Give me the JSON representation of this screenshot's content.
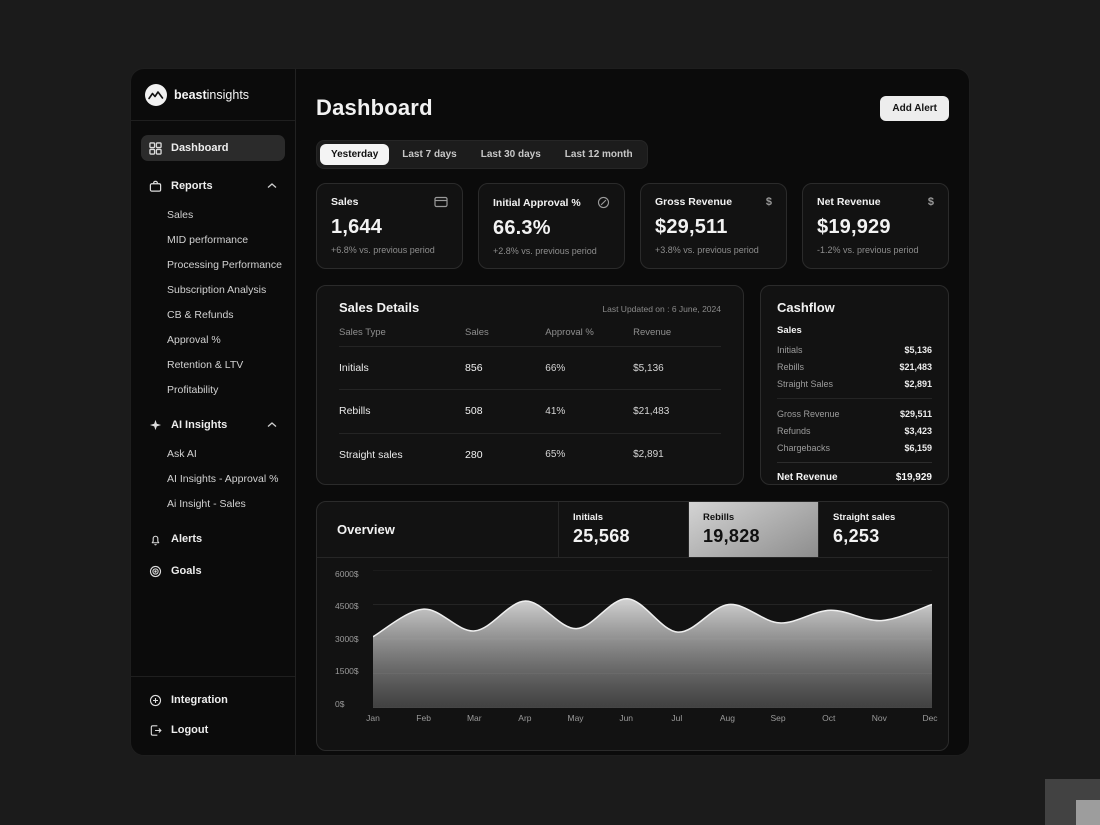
{
  "brand": {
    "bold": "beast",
    "light": "insights"
  },
  "sidebar": {
    "dashboard": "Dashboard",
    "reports": {
      "label": "Reports",
      "items": [
        "Sales",
        "MID performance",
        "Processing Performance",
        "Subscription Analysis",
        "CB & Refunds",
        "Approval %",
        "Retention & LTV",
        "Profitability"
      ]
    },
    "ai": {
      "label": "AI Insights",
      "items": [
        "Ask AI",
        "AI Insights - Approval %",
        "Ai Insight - Sales"
      ]
    },
    "alerts": "Alerts",
    "goals": "Goals",
    "integration": "Integration",
    "logout": "Logout"
  },
  "header": {
    "title": "Dashboard",
    "add_alert": "Add Alert"
  },
  "tabs": {
    "items": [
      "Yesterday",
      "Last 7 days",
      "Last 30 days",
      "Last 12 month"
    ],
    "selected": "Yesterday"
  },
  "kpis": [
    {
      "label": "Sales",
      "icon": "credit-card-icon",
      "value": "1,644",
      "delta": "+6.8% vs. previous period"
    },
    {
      "label": "Initial Approval %",
      "icon": "percent-circle-icon",
      "value": "66.3%",
      "delta": "+2.8% vs. previous period"
    },
    {
      "label": "Gross Revenue",
      "icon": "dollar-icon",
      "icon_glyph": "$",
      "value": "$29,511",
      "delta": "+3.8% vs. previous period"
    },
    {
      "label": "Net Revenue",
      "icon": "dollar-icon",
      "icon_glyph": "$",
      "value": "$19,929",
      "delta": "-1.2% vs. previous period"
    }
  ],
  "sales_details": {
    "title": "Sales Details",
    "last_updated": "Last Updated on : 6 June, 2024",
    "columns": [
      "Sales Type",
      "Sales",
      "Approval %",
      "Revenue"
    ],
    "rows": [
      {
        "type": "Initials",
        "sales": "856",
        "bar_pct": 66,
        "approval": "66%",
        "revenue": "$5,136"
      },
      {
        "type": "Rebills",
        "sales": "508",
        "bar_pct": 52,
        "approval": "41%",
        "revenue": "$21,483"
      },
      {
        "type": "Straight sales",
        "sales": "280",
        "bar_pct": 38,
        "approval": "65%",
        "revenue": "$2,891"
      }
    ]
  },
  "cashflow": {
    "title": "Cashflow",
    "section": "Sales",
    "rows_sales": [
      {
        "label": "Initials",
        "value": "$5,136"
      },
      {
        "label": "Rebills",
        "value": "$21,483"
      },
      {
        "label": "Straight Sales",
        "value": "$2,891"
      }
    ],
    "rows_totals": [
      {
        "label": "Gross Revenue",
        "value": "$29,511"
      },
      {
        "label": "Refunds",
        "value": "$3,423"
      },
      {
        "label": "Chargebacks",
        "value": "$6,159"
      }
    ],
    "net": {
      "label": "Net Revenue",
      "value": "$19,929"
    }
  },
  "overview": {
    "title": "Overview",
    "stats": [
      {
        "label": "Initials",
        "value": "25,568",
        "selected": false
      },
      {
        "label": "Rebills",
        "value": "19,828",
        "selected": true
      },
      {
        "label": "Straight sales",
        "value": "6,253",
        "selected": false
      }
    ]
  },
  "chart_data": {
    "type": "area",
    "title": "Overview",
    "x": [
      "Jan",
      "Feb",
      "Mar",
      "Arp",
      "May",
      "Jun",
      "Jul",
      "Aug",
      "Sep",
      "Oct",
      "Nov",
      "Dec"
    ],
    "values": [
      3100,
      4300,
      3350,
      4650,
      3450,
      4750,
      3300,
      4500,
      3700,
      4250,
      3800,
      4500
    ],
    "y_ticks_top_down": [
      "6000$",
      "4500$",
      "3000$",
      "1500$",
      "0$"
    ],
    "ylim": [
      0,
      6000
    ],
    "xlabel": "",
    "ylabel": "",
    "grid": true,
    "legend": false,
    "area_fill_top": "#dcdcdc",
    "area_fill_bottom": "#6f6f6f",
    "line_color": "#efefef"
  },
  "colors": {
    "page_background": "#1b1b1b",
    "panel": "#0b0b0b",
    "card": "#121212",
    "card_border": "#2b2b2b",
    "accent_light": "#f4f4f4",
    "text_secondary": "#9c9c9c"
  }
}
